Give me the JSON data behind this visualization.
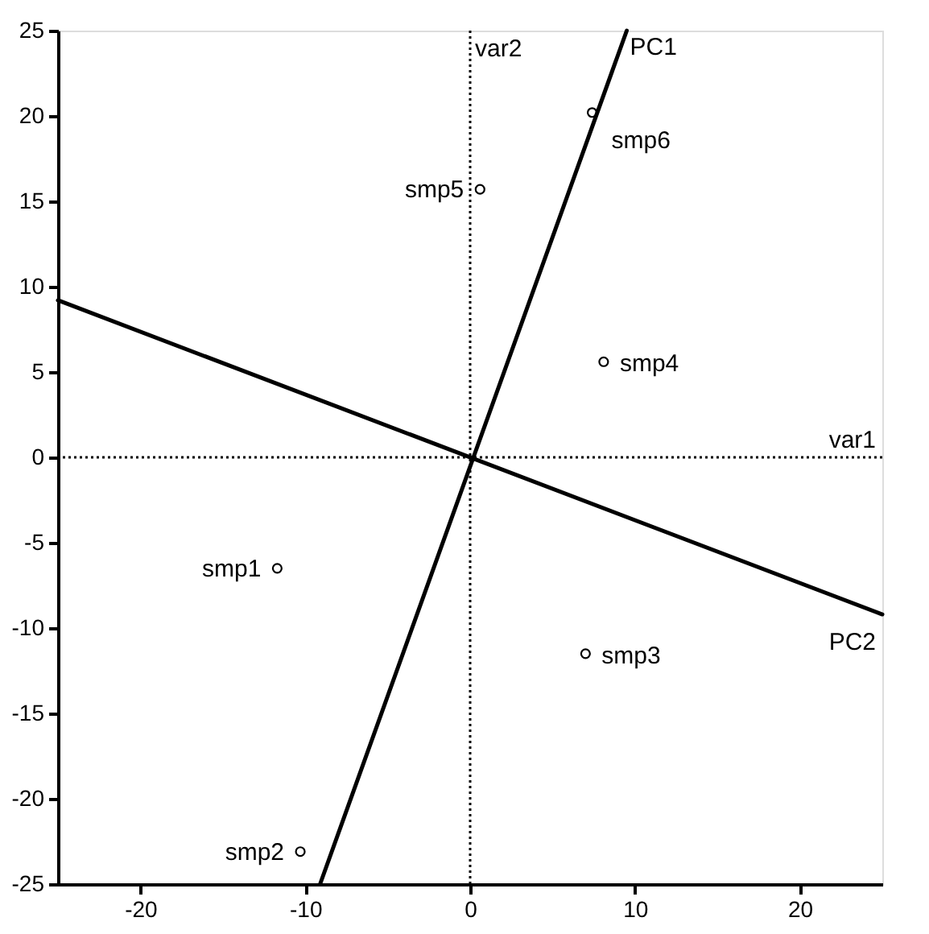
{
  "chart_data": {
    "type": "scatter",
    "xlim": [
      -25,
      25
    ],
    "ylim": [
      -25,
      25
    ],
    "xticks": [
      -20,
      -10,
      0,
      10,
      20
    ],
    "yticks": [
      -25,
      -20,
      -15,
      -10,
      -5,
      0,
      5,
      10,
      15,
      20,
      25
    ],
    "grid": false,
    "series": [
      {
        "marker": "circle",
        "color": "#000000",
        "x": [
          -11.7,
          -10.3,
          7.0,
          8.1,
          0.6,
          7.4
        ],
        "values": [
          -6.5,
          -23.1,
          -11.5,
          5.6,
          15.7,
          20.2
        ]
      },
      {
        "type": "line",
        "name": "PC1",
        "color": "#000000",
        "x": [
          -9.1,
          9.5
        ],
        "values": [
          -25,
          25
        ]
      },
      {
        "type": "line",
        "name": "PC2",
        "color": "#000000",
        "x": [
          -25,
          25
        ],
        "values": [
          9.2,
          -9.2
        ]
      }
    ],
    "ref_lines": [
      {
        "axis": "x",
        "value": 0,
        "label": "var2",
        "line_style": "dotted",
        "color": "#000000"
      },
      {
        "axis": "y",
        "value": 0,
        "label": "var1",
        "line_style": "dotted",
        "color": "#000000"
      }
    ],
    "annotations": [
      {
        "text": "smp1",
        "x": -11.7,
        "y": -6.5
      },
      {
        "text": "smp2",
        "x": -10.3,
        "y": -23.1
      },
      {
        "text": "smp3",
        "x": 7.0,
        "y": -11.5
      },
      {
        "text": "smp4",
        "x": 8.1,
        "y": 5.6
      },
      {
        "text": "smp5",
        "x": 0.6,
        "y": 15.7
      },
      {
        "text": "smp6",
        "x": 7.4,
        "y": 20.2
      }
    ]
  }
}
